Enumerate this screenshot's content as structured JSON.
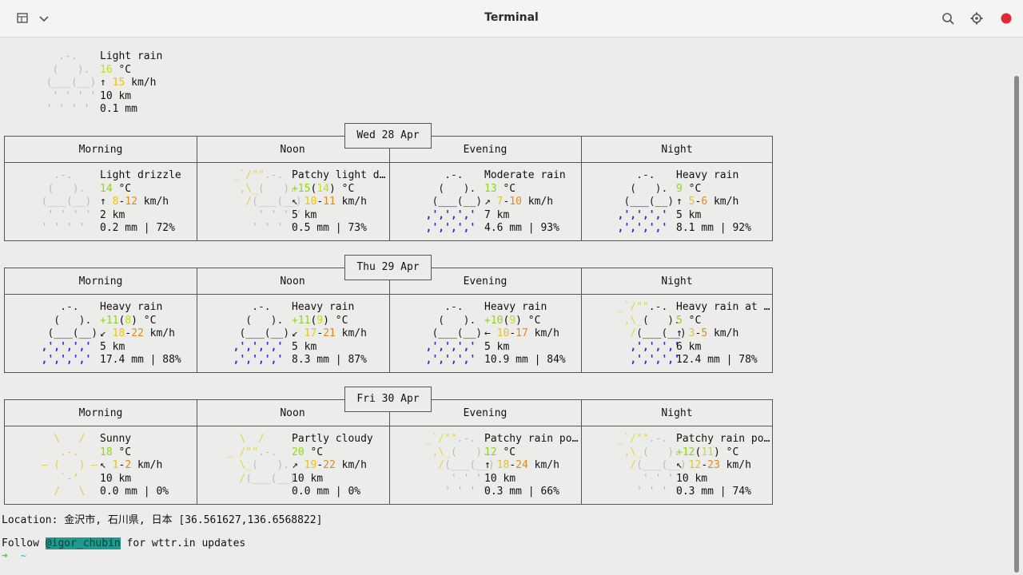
{
  "window": {
    "title": "Terminal",
    "close_color": "#e0283a"
  },
  "current": {
    "desc": "Light rain",
    "temp": "16",
    "temp_unit": " °C",
    "wind_arrow": "↑",
    "wind": "15",
    "wind_unit": " km/h",
    "visibility": "10 km",
    "precip": "0.1 mm"
  },
  "columns": [
    "Morning",
    "Noon",
    "Evening",
    "Night"
  ],
  "days": [
    {
      "date": "Wed 28 Apr",
      "periods": [
        {
          "desc": "Light drizzle",
          "t1": "14",
          "t2": "",
          "w_arrow": "↑",
          "w1": "8",
          "w2": "12",
          "vis": "2 km",
          "precip": "0.2 mm | 72%"
        },
        {
          "desc": "Patchy light d…",
          "t1": "+15",
          "t2": "14",
          "w_arrow": "↖",
          "w1": "10",
          "w2": "11",
          "vis": "5 km",
          "precip": "0.5 mm | 73%"
        },
        {
          "desc": "Moderate rain",
          "t1": "13",
          "t2": "",
          "w_arrow": "↗",
          "w1": "7",
          "w2": "10",
          "vis": "7 km",
          "precip": "4.6 mm | 93%"
        },
        {
          "desc": "Heavy rain",
          "t1": "9",
          "t2": "",
          "w_arrow": "↑",
          "w1": "5",
          "w2": "6",
          "vis": "5 km",
          "precip": "8.1 mm | 92%"
        }
      ]
    },
    {
      "date": "Thu 29 Apr",
      "periods": [
        {
          "desc": "Heavy rain",
          "t1": "+11",
          "t2": "8",
          "w_arrow": "↙",
          "w1": "18",
          "w2": "22",
          "vis": "5 km",
          "precip": "17.4 mm | 88%"
        },
        {
          "desc": "Heavy rain",
          "t1": "+11",
          "t2": "9",
          "w_arrow": "↙",
          "w1": "17",
          "w2": "21",
          "vis": "5 km",
          "precip": "8.3 mm | 87%"
        },
        {
          "desc": "Heavy rain",
          "t1": "+10",
          "t2": "9",
          "w_arrow": "←",
          "w1": "10",
          "w2": "17",
          "vis": "5 km",
          "precip": "10.9 mm | 84%"
        },
        {
          "desc": "Heavy rain at …",
          "t1": "5",
          "t2": "",
          "w_arrow": "↑",
          "w1": "3",
          "w2": "5",
          "vis": "6 km",
          "precip": "12.4 mm | 78%"
        }
      ]
    },
    {
      "date": "Fri 30 Apr",
      "periods": [
        {
          "desc": "Sunny",
          "t1": "18",
          "t2": "",
          "w_arrow": "↖",
          "w1": "1",
          "w2": "2",
          "vis": "10 km",
          "precip": "0.0 mm | 0%"
        },
        {
          "desc": "Partly cloudy",
          "t1": "20",
          "t2": "",
          "w_arrow": "↗",
          "w1": "19",
          "w2": "22",
          "vis": "10 km",
          "precip": "0.0 mm | 0%"
        },
        {
          "desc": "Patchy rain po…",
          "t1": "12",
          "t2": "",
          "w_arrow": "↑",
          "w1": "18",
          "w2": "24",
          "vis": "10 km",
          "precip": "0.3 mm | 66%"
        },
        {
          "desc": "Patchy rain po…",
          "t1": "+12",
          "t2": "11",
          "w_arrow": "↖",
          "w1": "12",
          "w2": "23",
          "vis": "10 km",
          "precip": "0.3 mm | 74%"
        }
      ]
    }
  ],
  "footer": {
    "location": "Location: 金沢市, 石川県, 日本 [36.561627,136.6568822]",
    "follow_pre": "Follow ",
    "handle": "@igor_chubin",
    "follow_post": " for wttr.in updates",
    "prompt": "➜",
    "cwd": "~"
  }
}
